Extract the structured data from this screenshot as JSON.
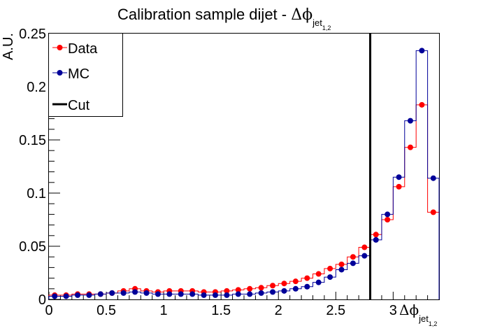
{
  "chart_data": {
    "type": "line",
    "title_main": "Calibration sample dijet    -   ",
    "title_symbol": "Δϕ",
    "title_sub": "jet",
    "title_subsub": "1,2",
    "ylabel": "A.U.",
    "xlabel_symbol": "Δϕ",
    "xlabel_sub": "jet",
    "xlabel_subsub": "1,2",
    "xlim": [
      0,
      3.4
    ],
    "ylim": [
      0,
      0.25
    ],
    "x_major_ticks": [
      0,
      0.5,
      1,
      1.5,
      2,
      2.5,
      3
    ],
    "x_tick_labels": [
      "0",
      "0.5",
      "1",
      "1.5",
      "2",
      "2.5",
      "3"
    ],
    "y_major_ticks": [
      0,
      0.05,
      0.1,
      0.15,
      0.2,
      0.25
    ],
    "y_tick_labels": [
      "0",
      "0.05",
      "0.1",
      "0.15",
      "0.2",
      "0.25"
    ],
    "bin_width": 0.1,
    "bin_centers": [
      0.05,
      0.15,
      0.25,
      0.35,
      0.45,
      0.55,
      0.65,
      0.75,
      0.85,
      0.95,
      1.05,
      1.15,
      1.25,
      1.35,
      1.45,
      1.55,
      1.65,
      1.75,
      1.85,
      1.95,
      2.05,
      2.15,
      2.25,
      2.35,
      2.45,
      2.55,
      2.65,
      2.75,
      2.85,
      2.95,
      3.05,
      3.15,
      3.25,
      3.35
    ],
    "series": [
      {
        "name": "Data",
        "color": "#ff0000",
        "values": [
          0.004,
          0.004,
          0.005,
          0.005,
          0.005,
          0.006,
          0.008,
          0.01,
          0.008,
          0.007,
          0.008,
          0.008,
          0.008,
          0.007,
          0.007,
          0.008,
          0.009,
          0.01,
          0.011,
          0.013,
          0.015,
          0.017,
          0.02,
          0.024,
          0.029,
          0.033,
          0.04,
          0.049,
          0.061,
          0.075,
          0.106,
          0.143,
          0.183,
          0.082
        ]
      },
      {
        "name": "MC",
        "color": "#000099",
        "values": [
          0.003,
          0.003,
          0.004,
          0.004,
          0.005,
          0.006,
          0.006,
          0.007,
          0.006,
          0.005,
          0.005,
          0.005,
          0.005,
          0.004,
          0.004,
          0.004,
          0.005,
          0.005,
          0.006,
          0.007,
          0.008,
          0.01,
          0.012,
          0.016,
          0.021,
          0.028,
          0.034,
          0.041,
          0.056,
          0.08,
          0.115,
          0.168,
          0.234,
          0.114
        ]
      }
    ],
    "cut": {
      "name": "Cut",
      "x": 2.8,
      "color": "#000000"
    },
    "legend": {
      "placement": "top-left",
      "entries": [
        "Data",
        "MC",
        "Cut"
      ]
    },
    "grid": false
  }
}
